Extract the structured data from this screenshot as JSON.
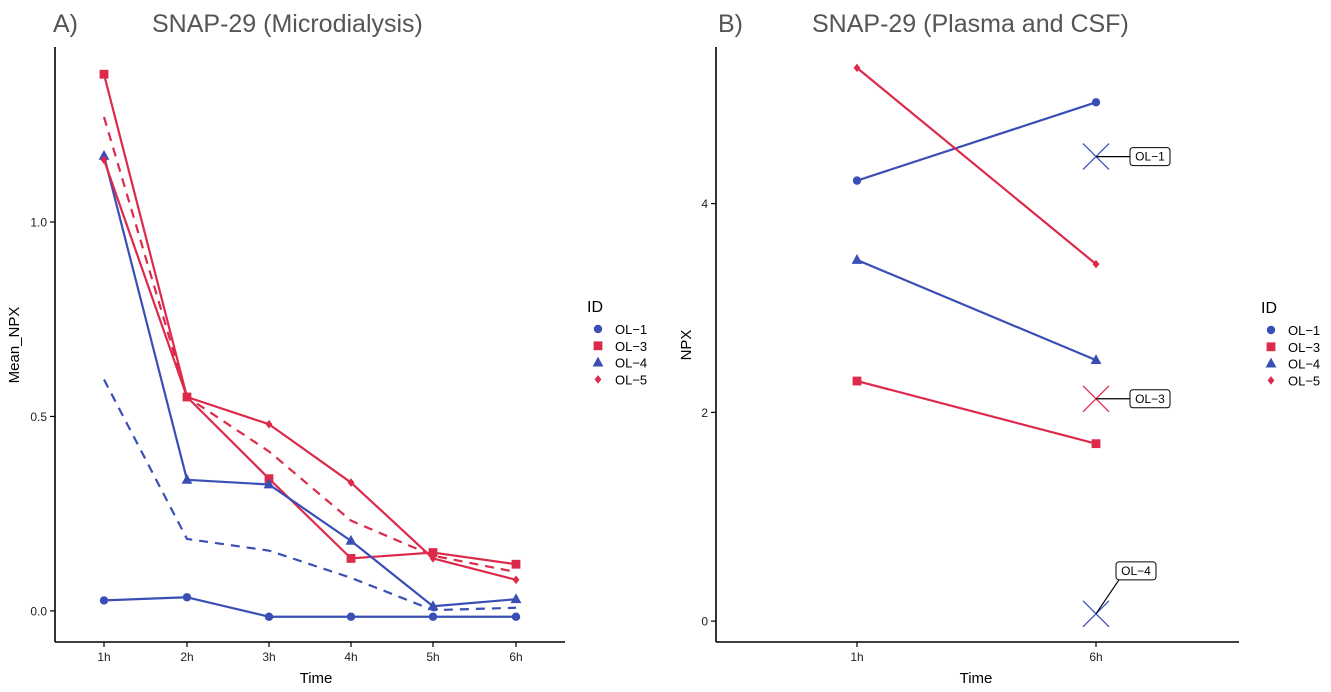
{
  "panels": [
    {
      "label": "A)",
      "title": "SNAP-29 (Microdialysis)"
    },
    {
      "label": "B)",
      "title": "SNAP-29 (Plasma and CSF)"
    }
  ],
  "legend": {
    "title": "ID",
    "items": [
      {
        "label": "OL−1",
        "color": "#3A4FB5",
        "shape": "circle"
      },
      {
        "label": "OL−3",
        "color": "#DD2A4B",
        "shape": "square"
      },
      {
        "label": "OL−4",
        "color": "#3A4FB5",
        "shape": "triangle"
      },
      {
        "label": "OL−5",
        "color": "#DD2A4B",
        "shape": "diamond"
      }
    ]
  },
  "chart_data": [
    {
      "type": "line",
      "title": "SNAP-29 (Microdialysis)",
      "xlabel": "Time",
      "ylabel": "Mean_NPX",
      "categories": [
        "1h",
        "2h",
        "3h",
        "4h",
        "5h",
        "6h"
      ],
      "ylim": [
        -0.08,
        1.45
      ],
      "yticks": [
        0.0,
        0.5,
        1.0
      ],
      "yticklabels": [
        "0.0",
        "0.5",
        "1.0"
      ],
      "series": [
        {
          "name": "OL−1",
          "color": "#3A4FB5",
          "shape": "circle",
          "dashed": false,
          "values": [
            0.027,
            0.035,
            -0.015,
            -0.015,
            -0.015,
            -0.015
          ]
        },
        {
          "name": "OL−3",
          "color": "#DD2A4B",
          "shape": "square",
          "dashed": false,
          "values": [
            1.38,
            0.55,
            0.34,
            0.135,
            0.15,
            0.12
          ]
        },
        {
          "name": "OL−4",
          "color": "#3A4FB5",
          "shape": "triangle",
          "dashed": false,
          "values": [
            1.17,
            0.337,
            0.325,
            0.18,
            0.012,
            0.03
          ]
        },
        {
          "name": "OL−5",
          "color": "#DD2A4B",
          "shape": "diamond",
          "dashed": false,
          "values": [
            1.16,
            0.55,
            0.48,
            0.33,
            0.135,
            0.08
          ]
        },
        {
          "color": "#3A4FB5",
          "shape": "none",
          "dashed": true,
          "values": [
            0.595,
            0.185,
            0.155,
            0.085,
            0.002,
            0.008
          ]
        },
        {
          "color": "#DD2A4B",
          "shape": "none",
          "dashed": true,
          "values": [
            1.27,
            0.55,
            0.41,
            0.232,
            0.142,
            0.1
          ]
        }
      ]
    },
    {
      "type": "line",
      "title": "SNAP-29 (Plasma and CSF)",
      "xlabel": "Time",
      "ylabel": "NPX",
      "categories": [
        "1h",
        "6h"
      ],
      "ylim": [
        -0.2,
        5.5
      ],
      "yticks": [
        0,
        2,
        4
      ],
      "yticklabels": [
        "0",
        "2",
        "4"
      ],
      "series": [
        {
          "name": "OL−1",
          "color": "#3A4FB5",
          "shape": "circle",
          "values": [
            4.22,
            4.97
          ]
        },
        {
          "name": "OL−3",
          "color": "#DD2A4B",
          "shape": "square",
          "values": [
            2.3,
            1.7
          ]
        },
        {
          "name": "OL−4",
          "color": "#3A4FB5",
          "shape": "triangle",
          "values": [
            3.46,
            2.5
          ]
        },
        {
          "name": "OL−5",
          "color": "#DD2A4B",
          "shape": "diamond",
          "values": [
            5.3,
            3.42
          ]
        }
      ],
      "annotations": [
        {
          "label": "OL−1",
          "x": "6h",
          "y": 4.45,
          "color": "#3A4FB5"
        },
        {
          "label": "OL−3",
          "x": "6h",
          "y": 2.13,
          "color": "#DD2A4B"
        },
        {
          "label": "OL−4",
          "x": "6h",
          "y": 0.07,
          "color": "#3A4FB5"
        }
      ]
    }
  ]
}
